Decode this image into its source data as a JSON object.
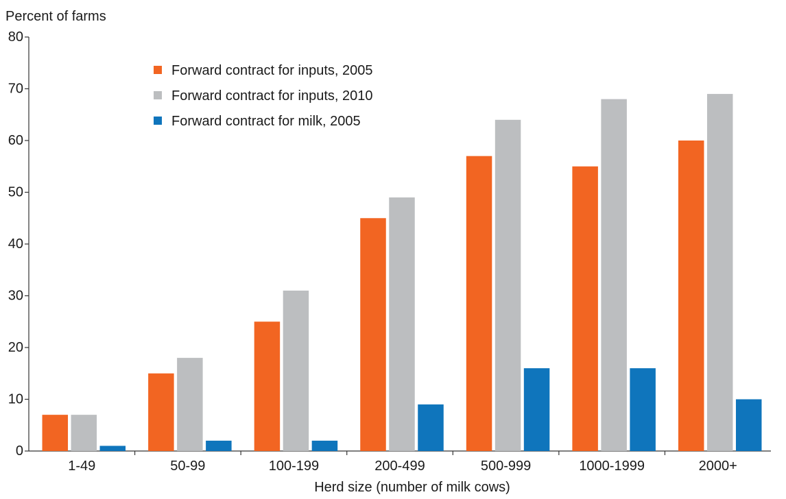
{
  "chart_data": {
    "type": "bar",
    "title": "",
    "ylabel": "Percent of farms",
    "xlabel": "Herd size (number of milk cows)",
    "categories": [
      "1-49",
      "50-99",
      "100-199",
      "200-499",
      "500-999",
      "1000-1999",
      "2000+"
    ],
    "ylim": [
      0,
      80
    ],
    "yticks": [
      0,
      10,
      20,
      30,
      40,
      50,
      60,
      70,
      80
    ],
    "grid": false,
    "legend_position": "top-left",
    "series": [
      {
        "name": "Forward contract for inputs, 2005",
        "color": "#f26522",
        "values": [
          7,
          15,
          25,
          45,
          57,
          55,
          60
        ]
      },
      {
        "name": "Forward contract for inputs, 2010",
        "color": "#bcbec0",
        "values": [
          7,
          18,
          31,
          49,
          64,
          68,
          69
        ]
      },
      {
        "name": "Forward contract for milk, 2005",
        "color": "#0f75bc",
        "values": [
          1,
          2,
          2,
          9,
          16,
          16,
          10
        ]
      }
    ]
  }
}
